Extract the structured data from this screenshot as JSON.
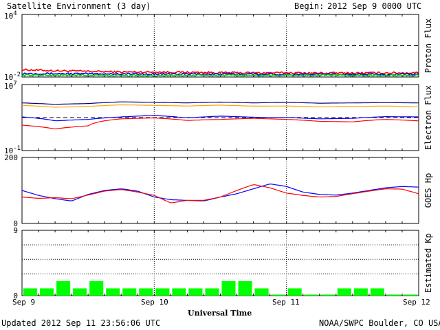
{
  "header": {
    "title": "Satellite Environment (3 day)",
    "begin_label": "Begin:",
    "begin_value": "2012 Sep 9 0000 UTC"
  },
  "footer": {
    "updated": "Updated 2012 Sep 11 23:56:06 UTC",
    "credit": "NOAA/SWPC Boulder, CO USA"
  },
  "chart_data": [
    {
      "type": "line",
      "panel": "proton",
      "ylabel": "Proton Flux",
      "yscale": "log",
      "ylim": [
        0.01,
        10000
      ],
      "ytick_labels": [
        {
          "base": "10",
          "exp": "4",
          "value": 10000
        },
        {
          "base": "10",
          "exp": "-2",
          "value": 0.01
        }
      ],
      "threshold": 10,
      "series": [
        {
          "color": "#ff0000",
          "x": [
            0,
            6,
            12,
            18,
            24,
            30,
            36,
            42,
            48,
            54,
            60,
            66,
            72
          ],
          "y": [
            0.05,
            0.04,
            0.035,
            0.03,
            0.03,
            0.028,
            0.026,
            0.025,
            0.025,
            0.024,
            0.024,
            0.025,
            0.025
          ]
        },
        {
          "color": "#0000ff",
          "x": [
            0,
            6,
            12,
            18,
            24,
            30,
            36,
            42,
            48,
            54,
            60,
            66,
            72
          ],
          "y": [
            0.022,
            0.021,
            0.02,
            0.02,
            0.019,
            0.019,
            0.019,
            0.019,
            0.018,
            0.018,
            0.018,
            0.018,
            0.018
          ]
        },
        {
          "color": "#00cc00",
          "x": [
            0,
            6,
            12,
            18,
            24,
            30,
            36,
            42,
            48,
            54,
            60,
            66,
            72
          ],
          "y": [
            0.015,
            0.015,
            0.014,
            0.014,
            0.014,
            0.014,
            0.014,
            0.014,
            0.014,
            0.014,
            0.014,
            0.014,
            0.014
          ]
        }
      ]
    },
    {
      "type": "line",
      "panel": "electron",
      "ylabel": "Electron Flux",
      "yscale": "log",
      "ylim": [
        0.1,
        10000000
      ],
      "ytick_labels": [
        {
          "base": "10",
          "exp": "7",
          "value": 10000000
        },
        {
          "base": "10",
          "exp": "-1",
          "value": 0.1
        }
      ],
      "threshold": 1000,
      "series": [
        {
          "color": "#000080",
          "x": [
            0,
            6,
            12,
            18,
            24,
            30,
            36,
            42,
            48,
            54,
            60,
            66,
            72
          ],
          "y": [
            60000,
            40000,
            50000,
            80000,
            70000,
            60000,
            75000,
            60000,
            70000,
            55000,
            60000,
            65000,
            60000
          ]
        },
        {
          "color": "#ffa500",
          "x": [
            0,
            6,
            12,
            18,
            24,
            30,
            36,
            42,
            48,
            54,
            60,
            66,
            72
          ],
          "y": [
            30000,
            18000,
            22000,
            35000,
            30000,
            25000,
            32000,
            24000,
            25000,
            20000,
            22000,
            25000,
            20000
          ]
        },
        {
          "color": "#0000ff",
          "x": [
            0,
            6,
            12,
            18,
            24,
            30,
            36,
            42,
            48,
            54,
            60,
            66,
            72
          ],
          "y": [
            1200,
            400,
            600,
            1200,
            1800,
            900,
            1500,
            1100,
            1000,
            700,
            800,
            1300,
            1200
          ]
        },
        {
          "color": "#ff0000",
          "x": [
            0,
            6,
            12,
            18,
            24,
            30,
            36,
            42,
            48,
            54,
            60,
            66,
            72
          ],
          "y": [
            120,
            40,
            100,
            700,
            900,
            450,
            600,
            800,
            600,
            350,
            300,
            600,
            400
          ]
        }
      ]
    },
    {
      "type": "line",
      "panel": "goes_hp",
      "ylabel": "GOES Hp",
      "ylim": [
        0,
        200
      ],
      "yticks": [
        0,
        200
      ],
      "series": [
        {
          "color": "#0000ff",
          "x": [
            0,
            3,
            6,
            9,
            12,
            15,
            18,
            21,
            24,
            27,
            30,
            33,
            36,
            39,
            42,
            45,
            48,
            51,
            54,
            57,
            60,
            63,
            66,
            69,
            72
          ],
          "y": [
            100,
            85,
            75,
            68,
            88,
            100,
            105,
            98,
            80,
            72,
            70,
            68,
            80,
            90,
            105,
            120,
            112,
            95,
            88,
            86,
            92,
            100,
            108,
            112,
            110
          ]
        },
        {
          "color": "#ff0000",
          "x": [
            0,
            3,
            6,
            9,
            12,
            15,
            18,
            21,
            24,
            27,
            30,
            33,
            36,
            39,
            42,
            45,
            48,
            51,
            54,
            57,
            60,
            63,
            66,
            69,
            72
          ],
          "y": [
            80,
            76,
            78,
            75,
            86,
            98,
            103,
            95,
            85,
            62,
            70,
            70,
            80,
            100,
            118,
            108,
            92,
            85,
            80,
            82,
            90,
            98,
            105,
            104,
            90
          ]
        }
      ]
    },
    {
      "type": "bar",
      "panel": "kp",
      "ylabel": "Estimated Kp",
      "ylim": [
        0,
        9
      ],
      "yticks": [
        0,
        9
      ],
      "grid_lines": [
        3,
        5,
        7,
        9
      ],
      "x_step_hours": 3,
      "values": [
        1,
        1,
        2,
        1,
        2,
        1,
        1,
        1,
        1,
        1,
        1,
        1,
        2,
        2,
        1,
        0,
        1,
        0,
        0,
        1,
        1,
        1,
        0,
        0
      ],
      "color": "#00ff00"
    }
  ],
  "xaxis": {
    "label": "Universal Time",
    "tick_labels": [
      "Sep 9",
      "Sep 10",
      "Sep 11",
      "Sep 12"
    ],
    "xlim_hours": [
      0,
      72
    ]
  }
}
